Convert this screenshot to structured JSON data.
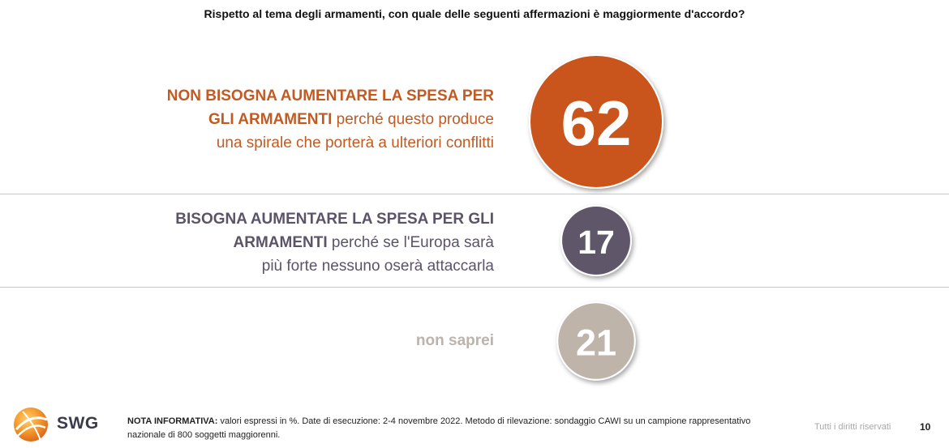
{
  "question": "Rispetto al tema degli armamenti, con quale delle seguenti affermazioni è maggiormente d'accordo?",
  "colors": {
    "orange": "#c9541a",
    "purple": "#5f566a",
    "taupe": "#bfb4aa",
    "orange_text": "#c35a22",
    "purple_text": "#5b5468",
    "taupe_text": "#bdb3aa"
  },
  "chart_data": {
    "type": "bubble",
    "categories": [
      "NON BISOGNA AUMENTARE LA SPESA PER GLI ARMAMENTI perché questo produce una spirale che porterà a ulteriori conflitti",
      "BISOGNA AUMENTARE LA SPESA PER GLI ARMAMENTI perché se l'Europa sarà più forte nessuno oserà attaccarla",
      "non saprei"
    ],
    "values": [
      62,
      17,
      21
    ],
    "unit": "%"
  },
  "rows": [
    {
      "bold_lines": [
        "NON BISOGNA AUMENTARE LA SPESA PER",
        "GLI ARMAMENTI"
      ],
      "rest_first": " perché questo produce",
      "rest_lines": [
        "una spirale che porterà a ulteriori conflitti"
      ],
      "value_label": "62"
    },
    {
      "bold_lines": [
        "BISOGNA AUMENTARE LA SPESA PER GLI",
        "ARMAMENTI"
      ],
      "rest_first": " perché se l'Europa sarà",
      "rest_lines": [
        "più forte nessuno oserà attaccarla"
      ],
      "value_label": "17"
    },
    {
      "bold_lines": [
        "non saprei"
      ],
      "value_label": "21"
    }
  ],
  "footer": {
    "note_label": "NOTA INFORMATIVA:",
    "note_text": " valori espressi in %. Date di esecuzione: 2-4 novembre 2022. Metodo di rilevazione: sondaggio CAWI su un campione rappresentativo nazionale di 800 soggetti maggiorenni.",
    "rights": "Tutti i diritti riservati",
    "page": "10",
    "logo_text": "SWG"
  }
}
